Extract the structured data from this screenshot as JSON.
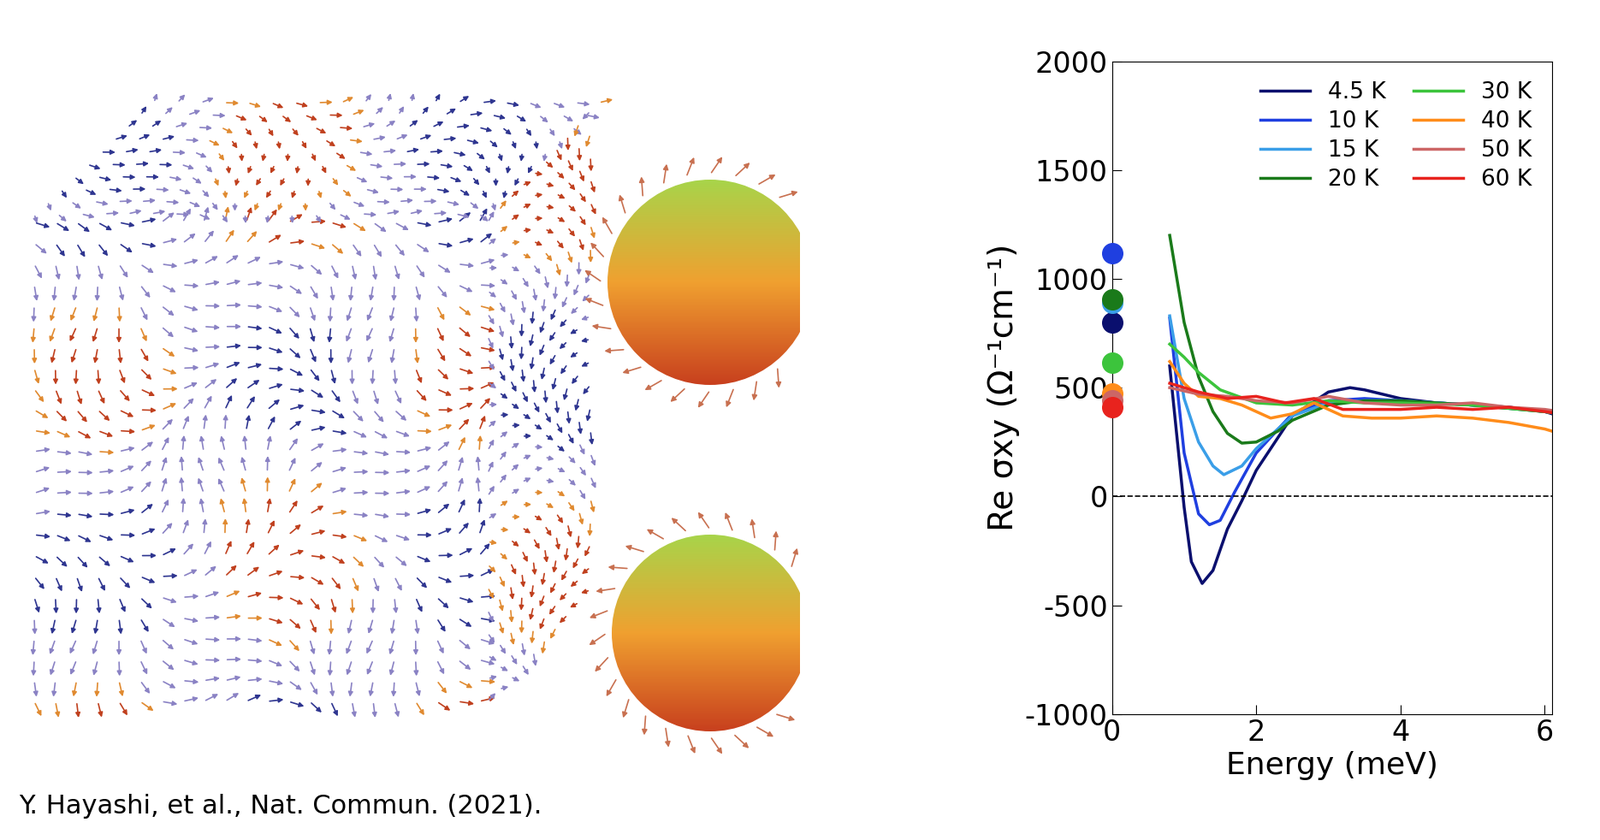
{
  "chart_data": {
    "type": "line",
    "xlabel": "Energy (meV)",
    "ylabel": "Re σxy (Ω⁻¹cm⁻¹)",
    "xlim": [
      0,
      6.1
    ],
    "xticks": [
      0,
      2,
      4,
      6
    ],
    "ylim": [
      -1000,
      2000
    ],
    "yticks": [
      -1000,
      -500,
      0,
      500,
      1000,
      1500,
      2000
    ],
    "reference_y": 0,
    "legend": "upper right",
    "series": [
      {
        "name": "4.5 K",
        "color": "#0a0f6e",
        "dc_value": 800,
        "x": [
          0.8,
          1.0,
          1.1,
          1.25,
          1.4,
          1.6,
          1.8,
          2.0,
          2.5,
          3.0,
          3.3,
          3.5,
          4.0,
          4.5,
          5.0,
          5.5,
          6.0,
          6.1
        ],
        "values": [
          600,
          -50,
          -300,
          -400,
          -340,
          -150,
          -20,
          120,
          370,
          480,
          500,
          490,
          450,
          430,
          420,
          410,
          390,
          380
        ]
      },
      {
        "name": "10 K",
        "color": "#1f3fe0",
        "dc_value": 1120,
        "x": [
          0.8,
          1.0,
          1.2,
          1.35,
          1.5,
          1.7,
          2.0,
          2.5,
          3.0,
          3.5,
          4.0,
          4.5,
          5.0,
          5.5,
          6.0,
          6.1
        ],
        "values": [
          820,
          200,
          -80,
          -130,
          -110,
          20,
          200,
          380,
          440,
          450,
          440,
          430,
          420,
          410,
          390,
          385
        ]
      },
      {
        "name": "15 K",
        "color": "#3a9ee8",
        "dc_value": 890,
        "x": [
          0.8,
          1.0,
          1.2,
          1.4,
          1.55,
          1.8,
          2.0,
          2.5,
          3.0,
          3.5,
          4.0,
          5.0,
          6.0,
          6.1
        ],
        "values": [
          830,
          450,
          250,
          140,
          100,
          140,
          220,
          370,
          430,
          440,
          440,
          420,
          390,
          385
        ]
      },
      {
        "name": "20 K",
        "color": "#1a7a1a",
        "dc_value": 905,
        "x": [
          0.8,
          1.0,
          1.2,
          1.4,
          1.6,
          1.8,
          2.0,
          2.3,
          2.5,
          3.0,
          3.5,
          4.0,
          5.0,
          6.0,
          6.1
        ],
        "values": [
          1200,
          800,
          550,
          390,
          290,
          245,
          250,
          300,
          350,
          420,
          440,
          440,
          420,
          390,
          385
        ]
      },
      {
        "name": "30 K",
        "color": "#3cc43c",
        "dc_value": 615,
        "x": [
          0.8,
          1.0,
          1.2,
          1.5,
          2.0,
          2.5,
          3.0,
          3.5,
          4.0,
          5.0,
          6.0,
          6.1
        ],
        "values": [
          700,
          640,
          570,
          490,
          430,
          420,
          440,
          430,
          430,
          420,
          390,
          385
        ]
      },
      {
        "name": "40 K",
        "color": "#ff8c1a",
        "dc_value": 475,
        "x": [
          0.8,
          1.0,
          1.2,
          1.5,
          1.8,
          2.2,
          2.5,
          2.8,
          3.2,
          3.6,
          4.0,
          4.5,
          5.0,
          5.5,
          6.0,
          6.1
        ],
        "values": [
          620,
          520,
          460,
          450,
          420,
          360,
          380,
          430,
          370,
          360,
          360,
          370,
          360,
          340,
          310,
          300
        ]
      },
      {
        "name": "50 K",
        "color": "#cc6666",
        "dc_value": 440,
        "x": [
          0.8,
          1.2,
          1.6,
          2.0,
          2.5,
          3.0,
          3.5,
          4.0,
          4.5,
          5.0,
          5.5,
          6.0,
          6.1
        ],
        "values": [
          500,
          470,
          460,
          440,
          430,
          460,
          430,
          420,
          420,
          430,
          410,
          400,
          395
        ]
      },
      {
        "name": "60 K",
        "color": "#e8231e",
        "dc_value": 410,
        "x": [
          0.8,
          1.2,
          1.6,
          2.0,
          2.4,
          2.8,
          3.2,
          3.6,
          4.0,
          4.5,
          5.0,
          5.5,
          6.0,
          6.1
        ],
        "values": [
          520,
          480,
          450,
          460,
          430,
          450,
          400,
          400,
          400,
          410,
          400,
          410,
          390,
          385
        ]
      }
    ]
  },
  "citation": "Y. Hayashi, et al., Nat. Commun. (2021)."
}
